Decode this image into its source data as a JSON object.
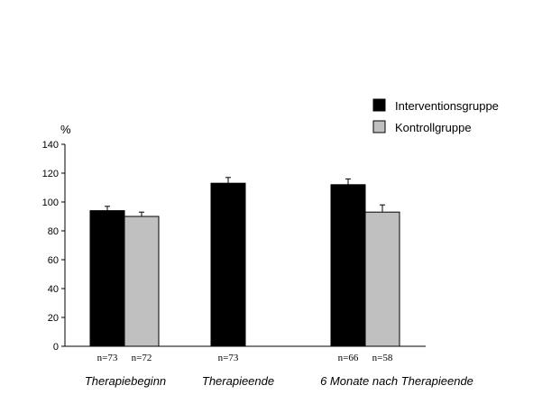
{
  "chart_data": {
    "type": "bar",
    "title": "",
    "xlabel": "",
    "ylabel": "%",
    "ylim": [
      0,
      140
    ],
    "yticks": [
      0,
      20,
      40,
      60,
      80,
      100,
      120,
      140
    ],
    "grid": false,
    "legend_position": "top-right",
    "categories": [
      "Therapiebeginn",
      "Therapieende",
      "6 Monate nach Therapieende"
    ],
    "series": [
      {
        "name": "Interventionsgruppe",
        "color": "#000000",
        "values": [
          94,
          113,
          112
        ],
        "errors": [
          3,
          4,
          4
        ],
        "n_labels": [
          "n=73",
          "n=73",
          "n=66"
        ]
      },
      {
        "name": "Kontrollgruppe",
        "color": "#c0c0c0",
        "values": [
          90,
          null,
          93
        ],
        "errors": [
          3,
          null,
          5
        ],
        "n_labels": [
          "n=72",
          "",
          "n=58"
        ]
      }
    ]
  }
}
